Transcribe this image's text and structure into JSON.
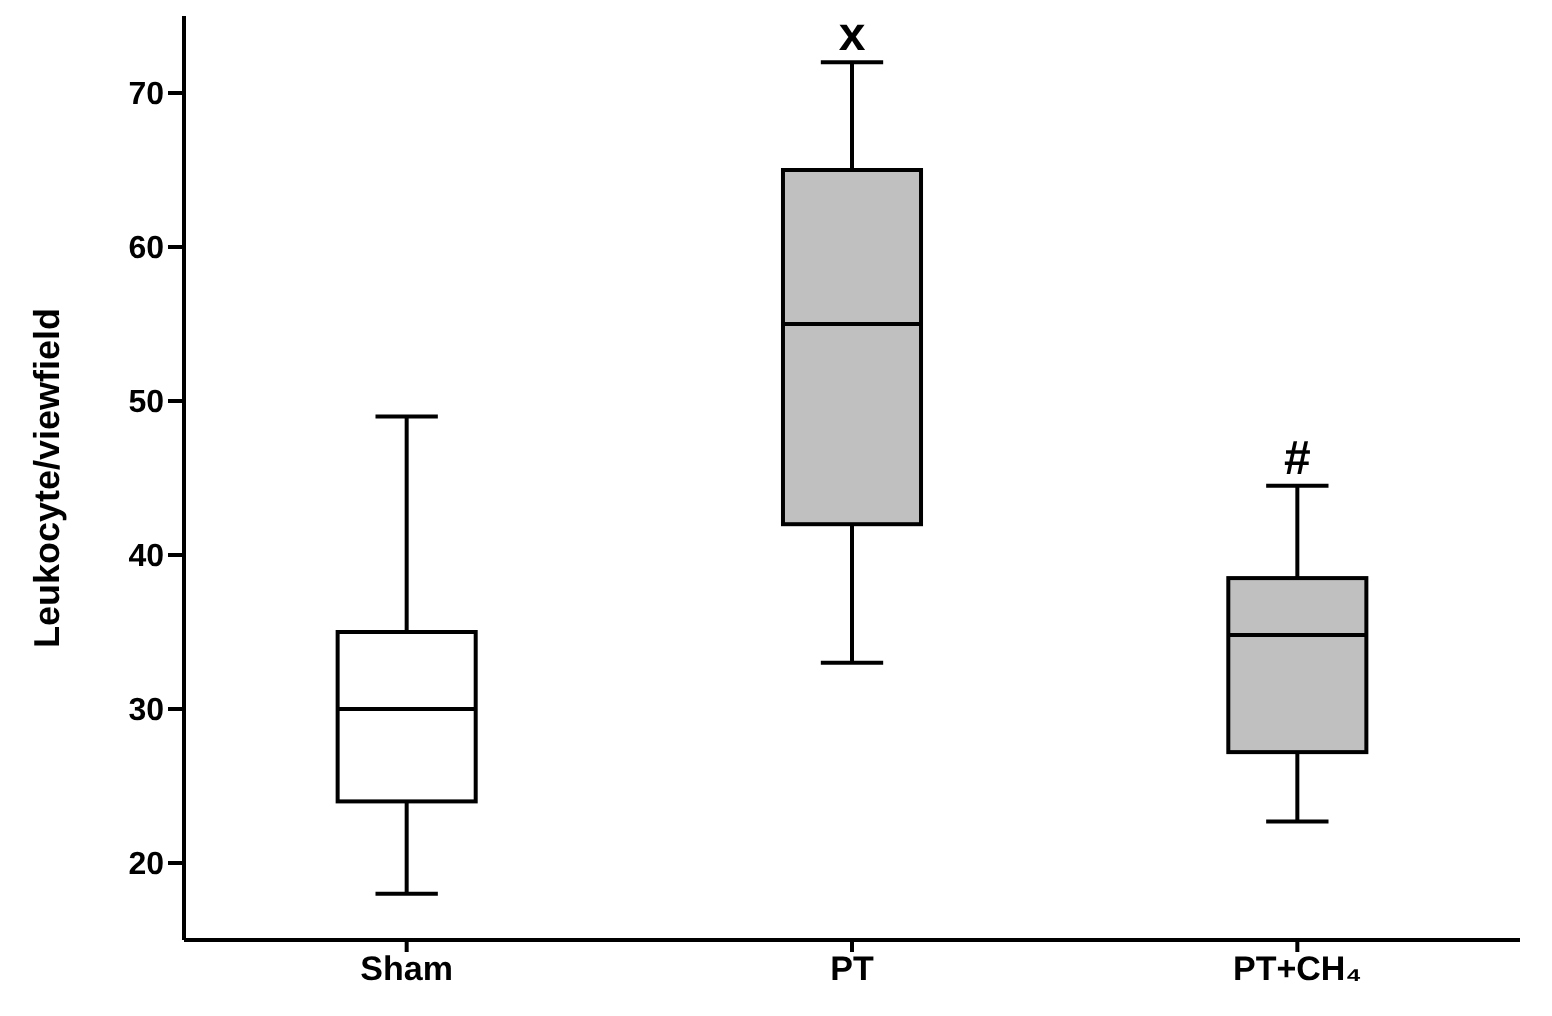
{
  "chart_data": {
    "type": "box",
    "ylabel": "Leukocyte/viewfield",
    "categories": [
      "Sham",
      "PT",
      "PT+CH₄"
    ],
    "colors": [
      "#ffffff",
      "#c0c0c0",
      "#c0c0c0"
    ],
    "boxes": [
      {
        "low": 18,
        "q1": 24,
        "median": 30,
        "q3": 35,
        "high": 49
      },
      {
        "low": 33,
        "q1": 42,
        "median": 55,
        "q3": 65,
        "high": 72
      },
      {
        "low": 22.7,
        "q1": 27.2,
        "median": 34.8,
        "q3": 38.5,
        "high": 44.5
      }
    ],
    "ylim": [
      15,
      75
    ],
    "yticks": [
      20,
      30,
      40,
      50,
      60,
      70
    ],
    "annotations": [
      {
        "text": "x",
        "x": "PT",
        "y": 72
      },
      "#"
    ]
  }
}
